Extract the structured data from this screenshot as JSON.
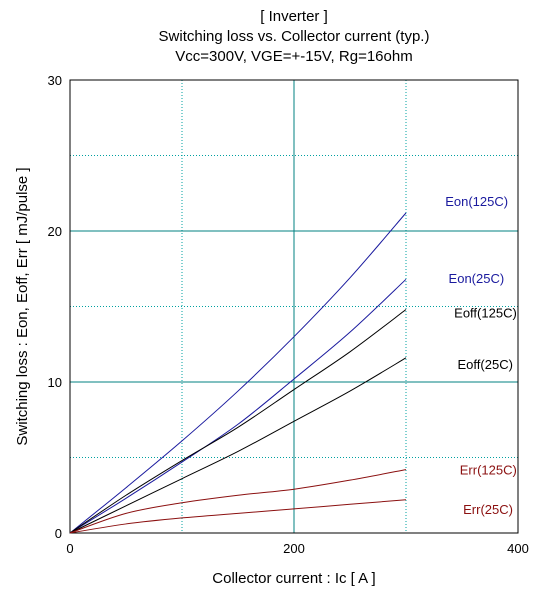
{
  "chart_data": {
    "type": "line",
    "title_lines": [
      "[ Inverter ]",
      "Switching loss  vs.  Collector current  (typ.)",
      "Vcc=300V, VGE=+-15V, Rg=16ohm"
    ],
    "xlabel": "Collector current  :  Ic  [ A ]",
    "ylabel": "Switching loss  :  Eon, Eoff, Err  [ mJ/pulse ]",
    "xlim": [
      0,
      400
    ],
    "ylim": [
      0,
      30
    ],
    "x_ticks": [
      "0",
      "200",
      "400"
    ],
    "y_ticks": [
      "0",
      "10",
      "20",
      "30"
    ],
    "grid": true,
    "colors": {
      "eon": "#1a1a9e",
      "eoff": "#000000",
      "err": "#8b1010",
      "major_grid": "#008080",
      "minor_grid": "#00a0a0"
    },
    "series": [
      {
        "name": "Eon(125C)",
        "color": "#1a1a9e",
        "x": [
          0,
          50,
          100,
          150,
          200,
          250,
          300
        ],
        "y": [
          0,
          3.0,
          6.1,
          9.4,
          13.0,
          16.9,
          21.2
        ]
      },
      {
        "name": "Eon(25C)",
        "color": "#1a1a9e",
        "x": [
          0,
          50,
          100,
          150,
          200,
          250,
          300
        ],
        "y": [
          0,
          2.3,
          4.7,
          7.2,
          10.2,
          13.3,
          16.8
        ]
      },
      {
        "name": "Eoff(125C)",
        "color": "#000000",
        "x": [
          0,
          50,
          100,
          150,
          200,
          250,
          300
        ],
        "y": [
          0,
          2.5,
          4.8,
          7.0,
          9.5,
          12.0,
          14.8
        ]
      },
      {
        "name": "Eoff(25C)",
        "color": "#000000",
        "x": [
          0,
          50,
          100,
          150,
          200,
          250,
          300
        ],
        "y": [
          0,
          1.8,
          3.6,
          5.4,
          7.4,
          9.4,
          11.6
        ]
      },
      {
        "name": "Err(125C)",
        "color": "#8b1010",
        "x": [
          0,
          50,
          100,
          150,
          200,
          250,
          300
        ],
        "y": [
          0,
          1.3,
          2.0,
          2.5,
          2.9,
          3.5,
          4.2
        ]
      },
      {
        "name": "Err(25C)",
        "color": "#8b1010",
        "x": [
          0,
          50,
          100,
          150,
          200,
          250,
          300
        ],
        "y": [
          0,
          0.6,
          1.0,
          1.3,
          1.6,
          1.9,
          2.2
        ]
      }
    ],
    "annotations": [
      {
        "text": "Eon(125C)",
        "color": "#1a1a9e",
        "x": 335,
        "y": 22.0
      },
      {
        "text": "Eon(25C)",
        "color": "#1a1a9e",
        "x": 338,
        "y": 16.9
      },
      {
        "text": "Eoff(125C)",
        "color": "#000000",
        "x": 343,
        "y": 14.6
      },
      {
        "text": "Eoff(25C)",
        "color": "#000000",
        "x": 346,
        "y": 11.2
      },
      {
        "text": "Err(125C)",
        "color": "#8b1010",
        "x": 348,
        "y": 4.2
      },
      {
        "text": "Err(25C)",
        "color": "#8b1010",
        "x": 351,
        "y": 1.6
      }
    ]
  }
}
